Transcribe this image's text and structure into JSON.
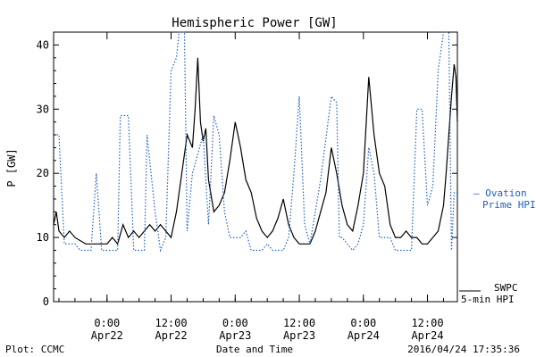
{
  "chart_data": {
    "type": "line",
    "title": "Hemispheric Power [GW]",
    "ylabel": "P [GW]",
    "xlabel": "Date and Time",
    "ylim": [
      0,
      42
    ],
    "xlim": [
      "2016-04-21 14:00",
      "2016-04-24 17:36"
    ],
    "yticks": [
      "0",
      "10",
      "20",
      "30",
      "40"
    ],
    "xticks": [
      {
        "t": "2016-04-22 00:00",
        "time": "0:00",
        "date": "Apr22"
      },
      {
        "t": "2016-04-22 12:00",
        "time": "12:00",
        "date": "Apr22"
      },
      {
        "t": "2016-04-23 00:00",
        "time": "0:00",
        "date": "Apr23"
      },
      {
        "t": "2016-04-23 12:00",
        "time": "12:00",
        "date": "Apr23"
      },
      {
        "t": "2016-04-24 00:00",
        "time": "0:00",
        "date": "Apr24"
      },
      {
        "t": "2016-04-24 12:00",
        "time": "12:00",
        "date": "Apr24"
      }
    ],
    "grid": false,
    "legend_placement": "right",
    "series": [
      {
        "name": "SWPC 5-min HPI",
        "label_lines": [
          "SWPC",
          "5-min HPI"
        ],
        "color": "#000000",
        "style": "solid",
        "points": [
          [
            "2016-04-21 14:00",
            12
          ],
          [
            "2016-04-21 14:30",
            14
          ],
          [
            "2016-04-21 15:00",
            11
          ],
          [
            "2016-04-21 16:00",
            10
          ],
          [
            "2016-04-21 17:00",
            11
          ],
          [
            "2016-04-21 18:00",
            10
          ],
          [
            "2016-04-21 20:00",
            9
          ],
          [
            "2016-04-21 22:00",
            9
          ],
          [
            "2016-04-22 00:00",
            9
          ],
          [
            "2016-04-22 01:00",
            10
          ],
          [
            "2016-04-22 02:00",
            9
          ],
          [
            "2016-04-22 03:00",
            12
          ],
          [
            "2016-04-22 04:00",
            10
          ],
          [
            "2016-04-22 05:00",
            11
          ],
          [
            "2016-04-22 06:00",
            10
          ],
          [
            "2016-04-22 07:00",
            11
          ],
          [
            "2016-04-22 08:00",
            12
          ],
          [
            "2016-04-22 09:00",
            11
          ],
          [
            "2016-04-22 10:00",
            12
          ],
          [
            "2016-04-22 11:00",
            11
          ],
          [
            "2016-04-22 12:00",
            10
          ],
          [
            "2016-04-22 13:00",
            14
          ],
          [
            "2016-04-22 14:00",
            20
          ],
          [
            "2016-04-22 15:00",
            26
          ],
          [
            "2016-04-22 16:00",
            24
          ],
          [
            "2016-04-22 16:30",
            30
          ],
          [
            "2016-04-22 17:00",
            38
          ],
          [
            "2016-04-22 17:30",
            28
          ],
          [
            "2016-04-22 18:00",
            25
          ],
          [
            "2016-04-22 18:30",
            27
          ],
          [
            "2016-04-22 19:00",
            19
          ],
          [
            "2016-04-22 20:00",
            14
          ],
          [
            "2016-04-22 21:00",
            15
          ],
          [
            "2016-04-22 22:00",
            17
          ],
          [
            "2016-04-22 23:00",
            22
          ],
          [
            "2016-04-23 00:00",
            28
          ],
          [
            "2016-04-23 01:00",
            24
          ],
          [
            "2016-04-23 02:00",
            19
          ],
          [
            "2016-04-23 03:00",
            17
          ],
          [
            "2016-04-23 04:00",
            13
          ],
          [
            "2016-04-23 05:00",
            11
          ],
          [
            "2016-04-23 06:00",
            10
          ],
          [
            "2016-04-23 07:00",
            11
          ],
          [
            "2016-04-23 08:00",
            13
          ],
          [
            "2016-04-23 09:00",
            16
          ],
          [
            "2016-04-23 10:00",
            12
          ],
          [
            "2016-04-23 11:00",
            10
          ],
          [
            "2016-04-23 12:00",
            9
          ],
          [
            "2016-04-23 13:00",
            9
          ],
          [
            "2016-04-23 14:00",
            9
          ],
          [
            "2016-04-23 15:00",
            11
          ],
          [
            "2016-04-23 16:00",
            14
          ],
          [
            "2016-04-23 17:00",
            17
          ],
          [
            "2016-04-23 18:00",
            24
          ],
          [
            "2016-04-23 19:00",
            20
          ],
          [
            "2016-04-23 20:00",
            15
          ],
          [
            "2016-04-23 21:00",
            12
          ],
          [
            "2016-04-23 22:00",
            11
          ],
          [
            "2016-04-23 23:00",
            15
          ],
          [
            "2016-04-24 00:00",
            20
          ],
          [
            "2016-04-24 01:00",
            35
          ],
          [
            "2016-04-24 02:00",
            26
          ],
          [
            "2016-04-24 03:00",
            20
          ],
          [
            "2016-04-24 04:00",
            18
          ],
          [
            "2016-04-24 05:00",
            12
          ],
          [
            "2016-04-24 06:00",
            10
          ],
          [
            "2016-04-24 07:00",
            10
          ],
          [
            "2016-04-24 08:00",
            11
          ],
          [
            "2016-04-24 09:00",
            10
          ],
          [
            "2016-04-24 10:00",
            10
          ],
          [
            "2016-04-24 11:00",
            9
          ],
          [
            "2016-04-24 12:00",
            9
          ],
          [
            "2016-04-24 13:00",
            10
          ],
          [
            "2016-04-24 14:00",
            11
          ],
          [
            "2016-04-24 15:00",
            15
          ],
          [
            "2016-04-24 15:30",
            20
          ],
          [
            "2016-04-24 16:00",
            26
          ],
          [
            "2016-04-24 16:30",
            32
          ],
          [
            "2016-04-24 17:00",
            37
          ],
          [
            "2016-04-24 17:20",
            35
          ],
          [
            "2016-04-24 17:36",
            28
          ]
        ]
      },
      {
        "name": "Ovation Prime HPI",
        "label_lines": [
          "— Ovation",
          "Prime HPI"
        ],
        "color": "#1f5fbf",
        "style": "dotted",
        "points": [
          [
            "2016-04-21 14:00",
            26
          ],
          [
            "2016-04-21 15:00",
            26
          ],
          [
            "2016-04-21 16:00",
            9
          ],
          [
            "2016-04-21 18:00",
            9
          ],
          [
            "2016-04-21 19:00",
            8
          ],
          [
            "2016-04-21 21:00",
            8
          ],
          [
            "2016-04-21 22:00",
            20
          ],
          [
            "2016-04-21 23:00",
            8
          ],
          [
            "2016-04-22 02:00",
            8
          ],
          [
            "2016-04-22 02:30",
            29
          ],
          [
            "2016-04-22 04:00",
            29
          ],
          [
            "2016-04-22 05:00",
            8
          ],
          [
            "2016-04-22 07:00",
            8
          ],
          [
            "2016-04-22 07:30",
            26
          ],
          [
            "2016-04-22 08:00",
            22
          ],
          [
            "2016-04-22 09:00",
            14
          ],
          [
            "2016-04-22 10:00",
            8
          ],
          [
            "2016-04-22 11:00",
            10
          ],
          [
            "2016-04-22 12:00",
            36
          ],
          [
            "2016-04-22 13:00",
            38
          ],
          [
            "2016-04-22 13:30",
            42
          ],
          [
            "2016-04-22 14:30",
            42
          ],
          [
            "2016-04-22 15:00",
            11
          ],
          [
            "2016-04-22 16:00",
            20
          ],
          [
            "2016-04-22 18:00",
            26
          ],
          [
            "2016-04-22 19:00",
            12
          ],
          [
            "2016-04-22 20:00",
            29
          ],
          [
            "2016-04-22 21:00",
            26
          ],
          [
            "2016-04-22 22:00",
            14
          ],
          [
            "2016-04-22 23:00",
            10
          ],
          [
            "2016-04-23 01:00",
            10
          ],
          [
            "2016-04-23 02:00",
            11
          ],
          [
            "2016-04-23 03:00",
            8
          ],
          [
            "2016-04-23 05:00",
            8
          ],
          [
            "2016-04-23 06:00",
            9
          ],
          [
            "2016-04-23 07:00",
            8
          ],
          [
            "2016-04-23 09:00",
            8
          ],
          [
            "2016-04-23 10:00",
            10
          ],
          [
            "2016-04-23 11:00",
            20
          ],
          [
            "2016-04-23 12:00",
            32
          ],
          [
            "2016-04-23 13:00",
            12
          ],
          [
            "2016-04-23 14:00",
            9
          ],
          [
            "2016-04-23 16:00",
            19
          ],
          [
            "2016-04-23 18:00",
            32
          ],
          [
            "2016-04-23 19:00",
            31
          ],
          [
            "2016-04-23 19:30",
            10
          ],
          [
            "2016-04-23 20:00",
            10
          ],
          [
            "2016-04-23 21:00",
            9
          ],
          [
            "2016-04-23 22:00",
            8
          ],
          [
            "2016-04-23 23:00",
            9
          ],
          [
            "2016-04-24 00:00",
            12
          ],
          [
            "2016-04-24 01:00",
            24
          ],
          [
            "2016-04-24 02:00",
            20
          ],
          [
            "2016-04-24 03:00",
            10
          ],
          [
            "2016-04-24 05:00",
            10
          ],
          [
            "2016-04-24 06:00",
            8
          ],
          [
            "2016-04-24 09:00",
            8
          ],
          [
            "2016-04-24 10:00",
            30
          ],
          [
            "2016-04-24 11:00",
            30
          ],
          [
            "2016-04-24 12:00",
            15
          ],
          [
            "2016-04-24 13:00",
            18
          ],
          [
            "2016-04-24 14:00",
            36
          ],
          [
            "2016-04-24 15:00",
            42
          ],
          [
            "2016-04-24 16:00",
            42
          ],
          [
            "2016-04-24 16:30",
            8
          ],
          [
            "2016-04-24 17:00",
            17
          ],
          [
            "2016-04-24 17:36",
            17
          ]
        ]
      }
    ]
  },
  "footer": {
    "left": "Plot: CCMC",
    "right": "2016/04/24 17:35:36"
  }
}
